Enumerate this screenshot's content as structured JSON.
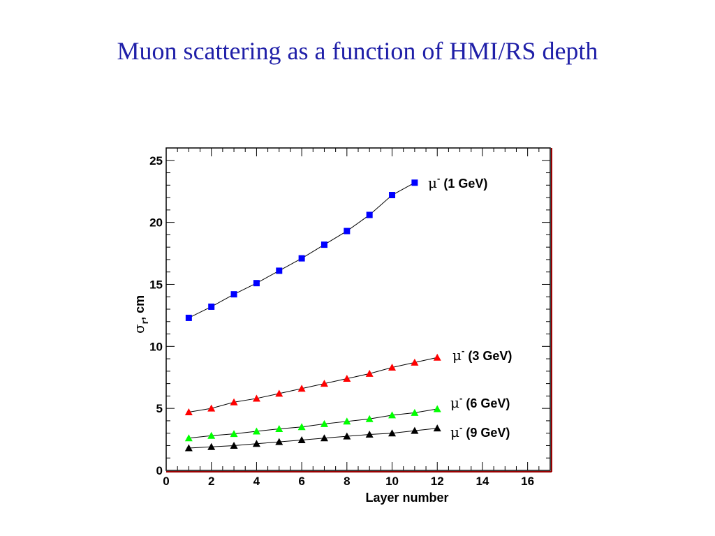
{
  "slide": {
    "title": "Muon scattering as a function of HMI/RS depth"
  },
  "chart_data": {
    "type": "line",
    "xlabel": "Layer number",
    "ylabel_symbol": "σ",
    "ylabel_subscript": "r",
    "ylabel_unit": ", cm",
    "xlim": [
      0,
      17
    ],
    "ylim": [
      0,
      26
    ],
    "xticks": [
      0,
      2,
      4,
      6,
      8,
      10,
      12,
      14,
      16
    ],
    "yticks": [
      0,
      5,
      10,
      15,
      20,
      25
    ],
    "grid": false,
    "series": [
      {
        "name": "μ- (1 GeV)",
        "label_symbol": "μ",
        "label_sup": "-",
        "label_text": "(1 GeV)",
        "marker": "square",
        "color": "#0000ff",
        "x": [
          1,
          2,
          3,
          4,
          5,
          6,
          7,
          8,
          9,
          10,
          11
        ],
        "y": [
          12.3,
          13.2,
          14.2,
          15.1,
          16.1,
          17.1,
          18.2,
          19.3,
          20.6,
          22.2,
          23.2
        ]
      },
      {
        "name": "μ- (3 GeV)",
        "label_symbol": "μ",
        "label_sup": "-",
        "label_text": "(3 GeV)",
        "marker": "triangle",
        "color": "#ff0000",
        "x": [
          1,
          2,
          3,
          4,
          5,
          6,
          7,
          8,
          9,
          10,
          11,
          12
        ],
        "y": [
          4.7,
          5.0,
          5.5,
          5.8,
          6.2,
          6.6,
          7.0,
          7.4,
          7.8,
          8.3,
          8.7,
          9.1
        ]
      },
      {
        "name": "μ- (6 GeV)",
        "label_symbol": "μ",
        "label_sup": "-",
        "label_text": "(6 GeV)",
        "marker": "triangle",
        "color": "#00ff00",
        "x": [
          1,
          2,
          3,
          4,
          5,
          6,
          7,
          8,
          9,
          10,
          11,
          12
        ],
        "y": [
          2.6,
          2.8,
          2.95,
          3.15,
          3.35,
          3.5,
          3.75,
          3.95,
          4.15,
          4.45,
          4.65,
          4.95
        ]
      },
      {
        "name": "μ- (9 GeV)",
        "label_symbol": "μ",
        "label_sup": "-",
        "label_text": "(9 GeV)",
        "marker": "triangle",
        "color": "#000000",
        "x": [
          1,
          2,
          3,
          4,
          5,
          6,
          7,
          8,
          9,
          10,
          11,
          12
        ],
        "y": [
          1.8,
          1.9,
          2.0,
          2.15,
          2.3,
          2.45,
          2.6,
          2.75,
          2.9,
          3.0,
          3.2,
          3.4
        ]
      }
    ]
  }
}
